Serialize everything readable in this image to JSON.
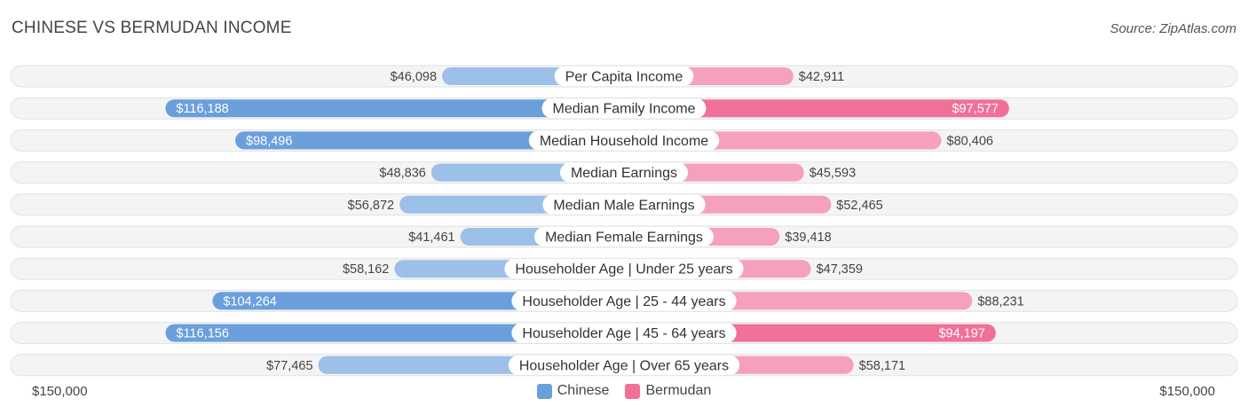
{
  "title": "CHINESE VS BERMUDAN INCOME",
  "source": "Source: ZipAtlas.com",
  "axis": {
    "left_label": "$150,000",
    "right_label": "$150,000"
  },
  "legend": {
    "chinese": {
      "label": "Chinese",
      "color": "#6a9fdb"
    },
    "bermudan": {
      "label": "Bermudan",
      "color": "#f07098"
    }
  },
  "colors": {
    "chinese_light": "#9dc0e8",
    "chinese_dark": "#6a9fdb",
    "bermudan_light": "#f5a0bd",
    "bermudan_dark": "#f07098",
    "track": "#ececec"
  },
  "chart_data": {
    "type": "bar",
    "orientation": "horizontal-diverging",
    "xlim": [
      0,
      150000
    ],
    "categories": [
      "Per Capita Income",
      "Median Family Income",
      "Median Household Income",
      "Median Earnings",
      "Median Male Earnings",
      "Median Female Earnings",
      "Householder Age | Under 25 years",
      "Householder Age | 25 - 44 years",
      "Householder Age | 45 - 64 years",
      "Householder Age | Over 65 years"
    ],
    "series": [
      {
        "name": "Chinese",
        "values": [
          46098,
          116188,
          98496,
          48836,
          56872,
          41461,
          58162,
          104264,
          116156,
          77465
        ],
        "labels": [
          "$46,098",
          "$116,188",
          "$98,496",
          "$48,836",
          "$56,872",
          "$41,461",
          "$58,162",
          "$104,264",
          "$116,156",
          "$77,465"
        ]
      },
      {
        "name": "Bermudan",
        "values": [
          42911,
          97577,
          80406,
          45593,
          52465,
          39418,
          47359,
          88231,
          94197,
          58171
        ],
        "labels": [
          "$42,911",
          "$97,577",
          "$80,406",
          "$45,593",
          "$52,465",
          "$39,418",
          "$47,359",
          "$88,231",
          "$94,197",
          "$58,171"
        ]
      }
    ]
  }
}
